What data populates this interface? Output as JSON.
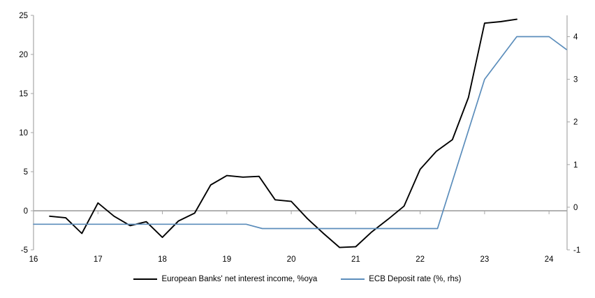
{
  "chart_data": {
    "type": "line",
    "title": "",
    "x_axis": {
      "min": 16,
      "max": 24.28,
      "ticks": [
        16,
        17,
        18,
        19,
        20,
        21,
        22,
        23,
        24
      ],
      "tick_labels": [
        "16",
        "17",
        "18",
        "19",
        "20",
        "21",
        "22",
        "23",
        "24"
      ]
    },
    "left_axis": {
      "min": -5,
      "max": 25,
      "ticks": [
        -5,
        0,
        5,
        10,
        15,
        20,
        25
      ],
      "tick_labels": [
        "-5",
        "0",
        "5",
        "10",
        "15",
        "20",
        "25"
      ]
    },
    "right_axis": {
      "min": -1,
      "max": 4.5,
      "ticks": [
        -1,
        0,
        1,
        2,
        3,
        4
      ],
      "tick_labels": [
        "-1",
        "0",
        "1",
        "2",
        "3",
        "4"
      ]
    },
    "series": [
      {
        "name": "European Banks' net interest income, %oya",
        "axis": "left",
        "color": "#000000",
        "stroke_width": 1.9,
        "x": [
          16.25,
          16.5,
          16.75,
          17.0,
          17.25,
          17.5,
          17.75,
          18.0,
          18.25,
          18.5,
          18.75,
          19.0,
          19.25,
          19.5,
          19.75,
          20.0,
          20.25,
          20.5,
          20.75,
          21.0,
          21.25,
          21.5,
          21.75,
          22.0,
          22.25,
          22.5,
          22.75,
          23.0,
          23.25,
          23.5
        ],
        "values": [
          -0.7,
          -0.9,
          -2.9,
          1.0,
          -0.7,
          -1.9,
          -1.4,
          -3.4,
          -1.3,
          -0.3,
          3.3,
          4.5,
          4.3,
          4.4,
          1.4,
          1.2,
          -1.0,
          -2.9,
          -4.7,
          -4.6,
          -2.7,
          -1.1,
          0.6,
          5.3,
          7.6,
          9.1,
          14.5,
          24.0,
          24.2,
          24.5
        ]
      },
      {
        "name": "ECB Deposit rate (%, rhs)",
        "axis": "right",
        "color": "#5B8DBB",
        "stroke_width": 1.7,
        "x": [
          16.0,
          19.3,
          19.55,
          22.27,
          23.0,
          23.5,
          24.0,
          24.27
        ],
        "values": [
          -0.4,
          -0.4,
          -0.5,
          -0.5,
          3.0,
          4.0,
          4.0,
          3.7
        ]
      }
    ],
    "legend": {
      "position": "bottom"
    },
    "colors": {
      "axis": "#A6A6A6",
      "zero_line": "#A6A6A6",
      "text": "#000000",
      "background": "#FFFFFF"
    },
    "grid": "off"
  }
}
